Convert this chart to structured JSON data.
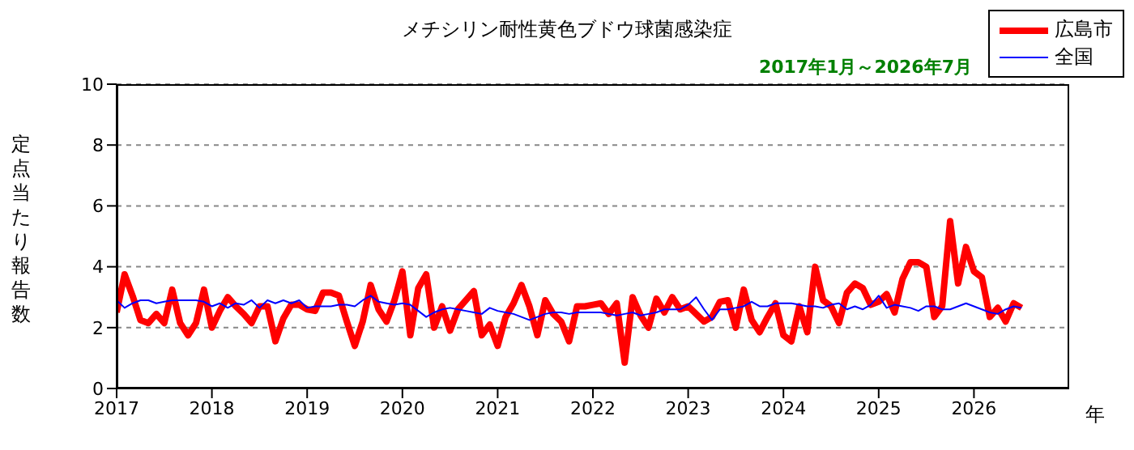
{
  "chart_data": {
    "type": "line",
    "title": "メチシリン耐性黄色ブドウ球菌感染症",
    "subtitle": "2017年1月～2026年7月",
    "ylabel": "定点当たり報告数",
    "xlabel": "年",
    "x": [
      "2017-01",
      "2017-02",
      "2017-03",
      "2017-04",
      "2017-05",
      "2017-06",
      "2017-07",
      "2017-08",
      "2017-09",
      "2017-10",
      "2017-11",
      "2017-12",
      "2018-01",
      "2018-02",
      "2018-03",
      "2018-04",
      "2018-05",
      "2018-06",
      "2018-07",
      "2018-08",
      "2018-09",
      "2018-10",
      "2018-11",
      "2018-12",
      "2019-01",
      "2019-02",
      "2019-03",
      "2019-04",
      "2019-05",
      "2019-06",
      "2019-07",
      "2019-08",
      "2019-09",
      "2019-10",
      "2019-11",
      "2019-12",
      "2020-01",
      "2020-02",
      "2020-03",
      "2020-04",
      "2020-05",
      "2020-06",
      "2020-07",
      "2020-08",
      "2020-09",
      "2020-10",
      "2020-11",
      "2020-12",
      "2021-01",
      "2021-02",
      "2021-03",
      "2021-04",
      "2021-05",
      "2021-06",
      "2021-07",
      "2021-08",
      "2021-09",
      "2021-10",
      "2021-11",
      "2021-12",
      "2022-01",
      "2022-02",
      "2022-03",
      "2022-04",
      "2022-05",
      "2022-06",
      "2022-07",
      "2022-08",
      "2022-09",
      "2022-10",
      "2022-11",
      "2022-12",
      "2023-01",
      "2023-02",
      "2023-03",
      "2023-04",
      "2023-05",
      "2023-06",
      "2023-07",
      "2023-08",
      "2023-09",
      "2023-10",
      "2023-11",
      "2023-12",
      "2024-01",
      "2024-02",
      "2024-03",
      "2024-04",
      "2024-05",
      "2024-06",
      "2024-07",
      "2024-08",
      "2024-09",
      "2024-10",
      "2024-11",
      "2024-12",
      "2025-01",
      "2025-02",
      "2025-03",
      "2025-04",
      "2025-05",
      "2025-06",
      "2025-07",
      "2025-08",
      "2025-09",
      "2025-10",
      "2025-11",
      "2025-12",
      "2026-01",
      "2026-02",
      "2026-03",
      "2026-04",
      "2026-05",
      "2026-06",
      "2026-07"
    ],
    "series": [
      {
        "name": "広島市",
        "color": "#ff0000",
        "values": [
          2.5,
          3.75,
          3.05,
          2.25,
          2.15,
          2.45,
          2.15,
          3.25,
          2.15,
          1.75,
          2.15,
          3.25,
          2.0,
          2.55,
          3.0,
          2.7,
          2.45,
          2.15,
          2.7,
          2.7,
          1.55,
          2.3,
          2.75,
          2.75,
          2.6,
          2.55,
          3.15,
          3.15,
          3.05,
          2.2,
          1.4,
          2.2,
          3.4,
          2.6,
          2.2,
          2.9,
          3.85,
          1.75,
          3.3,
          3.75,
          2.0,
          2.7,
          1.9,
          2.6,
          2.9,
          3.2,
          1.75,
          2.1,
          1.4,
          2.35,
          2.8,
          3.4,
          2.7,
          1.75,
          2.9,
          2.45,
          2.2,
          1.55,
          2.7,
          2.7,
          2.75,
          2.8,
          2.45,
          2.8,
          0.85,
          3.0,
          2.4,
          2.0,
          2.95,
          2.5,
          3.0,
          2.6,
          2.7,
          2.45,
          2.2,
          2.35,
          2.85,
          2.9,
          2.0,
          3.25,
          2.25,
          1.85,
          2.35,
          2.8,
          1.75,
          1.55,
          2.7,
          1.85,
          4.0,
          2.9,
          2.7,
          2.15,
          3.15,
          3.45,
          3.3,
          2.75,
          2.85,
          3.1,
          2.5,
          3.6,
          4.15,
          4.15,
          4.0,
          2.35,
          2.7,
          5.5,
          3.45,
          4.65,
          3.85,
          3.65,
          2.35,
          2.65,
          2.2,
          2.8,
          2.65
        ]
      },
      {
        "name": "全国",
        "color": "#0000ff",
        "values": [
          2.9,
          2.65,
          2.8,
          2.9,
          2.9,
          2.8,
          2.85,
          2.9,
          2.9,
          2.9,
          2.9,
          2.85,
          2.7,
          2.8,
          2.65,
          2.8,
          2.75,
          2.9,
          2.65,
          2.9,
          2.8,
          2.9,
          2.8,
          2.9,
          2.65,
          2.7,
          2.7,
          2.7,
          2.75,
          2.75,
          2.7,
          2.9,
          3.05,
          2.85,
          2.8,
          2.75,
          2.8,
          2.75,
          2.55,
          2.35,
          2.5,
          2.6,
          2.65,
          2.6,
          2.55,
          2.5,
          2.45,
          2.65,
          2.55,
          2.5,
          2.45,
          2.35,
          2.25,
          2.35,
          2.45,
          2.5,
          2.5,
          2.45,
          2.5,
          2.5,
          2.5,
          2.5,
          2.45,
          2.4,
          2.45,
          2.5,
          2.4,
          2.45,
          2.5,
          2.6,
          2.6,
          2.6,
          2.75,
          3.0,
          2.6,
          2.25,
          2.6,
          2.6,
          2.65,
          2.7,
          2.85,
          2.7,
          2.7,
          2.8,
          2.8,
          2.8,
          2.75,
          2.7,
          2.7,
          2.65,
          2.75,
          2.8,
          2.6,
          2.7,
          2.6,
          2.75,
          3.05,
          2.65,
          2.75,
          2.7,
          2.65,
          2.55,
          2.7,
          2.7,
          2.6,
          2.6,
          2.7,
          2.8,
          2.7,
          2.6,
          2.5,
          2.45,
          2.6,
          2.7,
          2.65
        ]
      }
    ],
    "xlim": [
      "2017",
      "2027"
    ],
    "xticks": [
      "2017",
      "2018",
      "2019",
      "2020",
      "2021",
      "2022",
      "2023",
      "2024",
      "2025",
      "2026"
    ],
    "ylim": [
      0,
      10
    ],
    "yticks": [
      0,
      2,
      4,
      6,
      8,
      10
    ],
    "grid": "y",
    "legend": "top right",
    "marker": "none",
    "line_style": "solid"
  }
}
